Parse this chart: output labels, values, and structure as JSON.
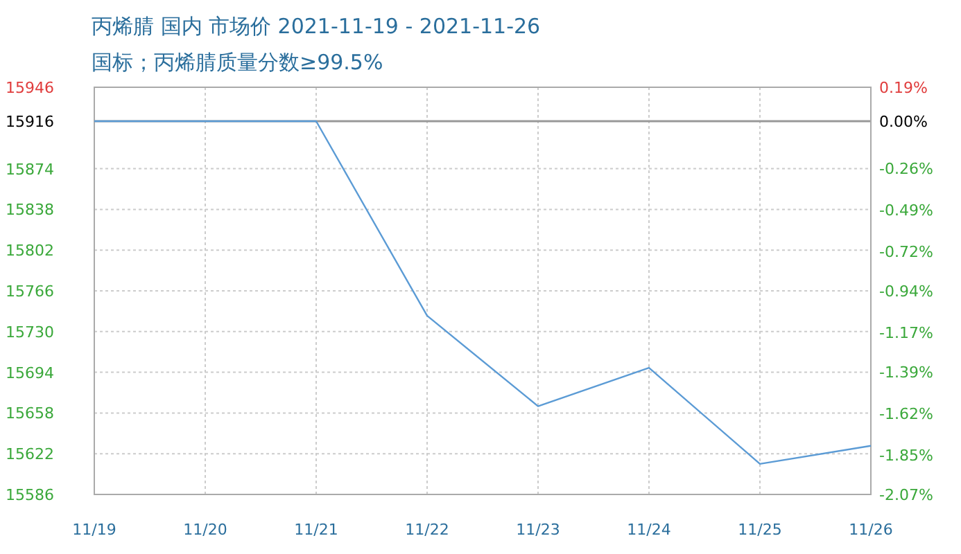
{
  "chart_data": {
    "type": "line",
    "title": "丙烯腈 国内 市场价 2021-11-19 - 2021-11-26",
    "subtitle": "国标；丙烯腈质量分数≥99.5%",
    "categories": [
      "11/19",
      "11/20",
      "11/21",
      "11/22",
      "11/23",
      "11/24",
      "11/25",
      "11/26"
    ],
    "series": [
      {
        "color": "#5b9bd5",
        "values": [
          15916,
          15916,
          15916,
          15744,
          15664,
          15698,
          15613,
          15629
        ]
      }
    ],
    "ylim": [
      15586,
      15946
    ],
    "yticks": [
      15946,
      15916,
      15874,
      15838,
      15802,
      15766,
      15730,
      15694,
      15658,
      15622,
      15586
    ],
    "y2lim": [
      -2.07,
      0.19
    ],
    "y2ticks": [
      {
        "value": 0.19,
        "label": "0.19%"
      },
      {
        "value": 0,
        "label": "0.00%"
      },
      {
        "value": -0.26,
        "label": "-0.26%"
      },
      {
        "value": -0.49,
        "label": "-0.49%"
      },
      {
        "value": -0.72,
        "label": "-0.72%"
      },
      {
        "value": -0.94,
        "label": "-0.94%"
      },
      {
        "value": -1.17,
        "label": "-1.17%"
      },
      {
        "value": -1.39,
        "label": "-1.39%"
      },
      {
        "value": -1.62,
        "label": "-1.62%"
      },
      {
        "value": -1.85,
        "label": "-1.85%"
      },
      {
        "value": -2.07,
        "label": "-2.07%"
      }
    ],
    "ref_lines": [
      {
        "axis": "y",
        "value": 15916,
        "color": "#999999",
        "line_style": "solid"
      }
    ],
    "grid": true,
    "marker": "none",
    "line_style": "solid"
  }
}
